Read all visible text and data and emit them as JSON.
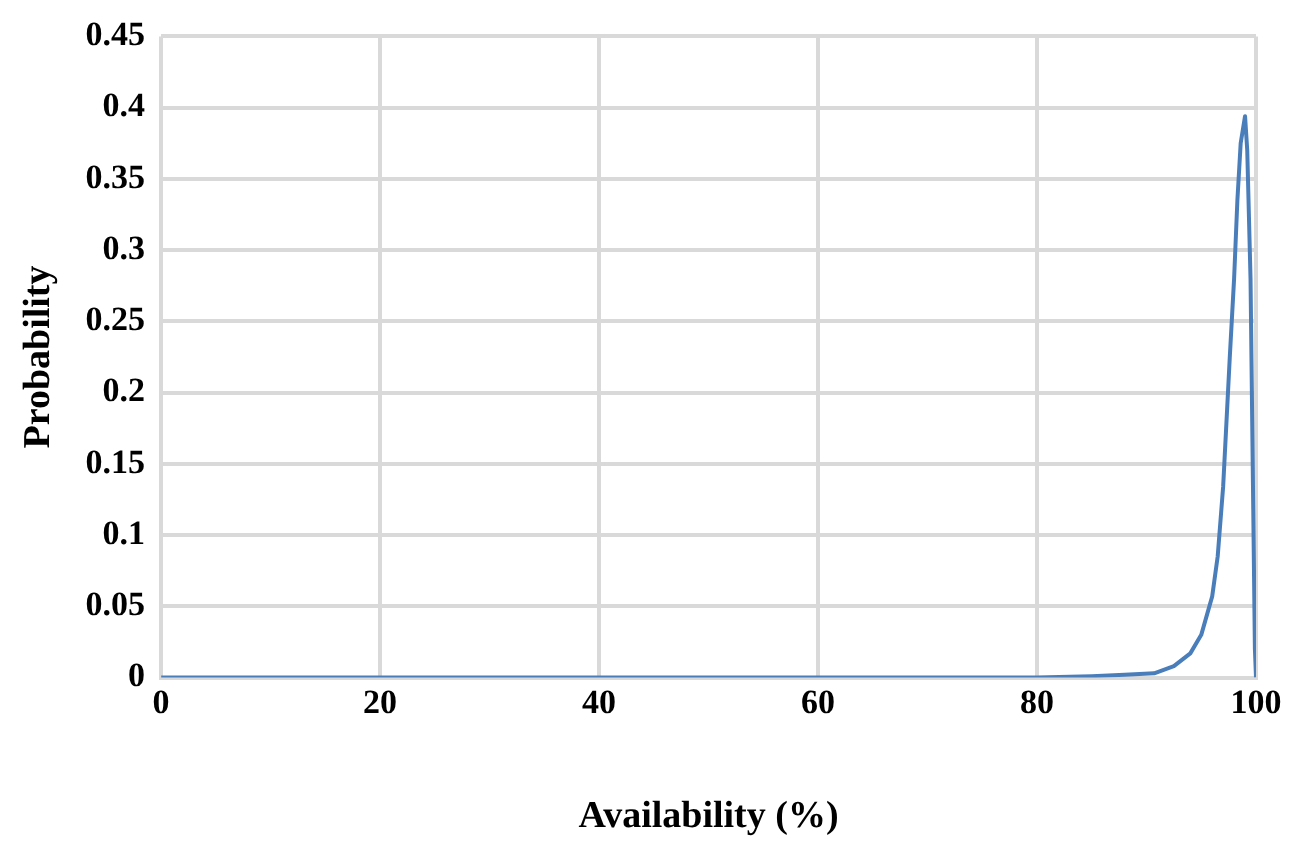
{
  "chart_data": {
    "type": "line",
    "xlabel": "Availability (%)",
    "ylabel": "Probability",
    "series": [
      {
        "color": "#4a7ebb",
        "x": [
          0,
          20,
          40,
          60,
          80,
          85,
          88,
          90.7,
          92.5,
          94,
          95,
          96,
          96.5,
          97,
          97.6,
          98,
          98.3,
          98.6,
          99,
          99.2,
          99.5,
          99.7,
          99.9,
          100
        ],
        "values": [
          0,
          0,
          0,
          0,
          0,
          0.001,
          0.002,
          0.003,
          0.008,
          0.017,
          0.03,
          0.057,
          0.085,
          0.134,
          0.224,
          0.28,
          0.335,
          0.375,
          0.394,
          0.37,
          0.28,
          0.15,
          0.02,
          0
        ]
      }
    ],
    "xlim": [
      0,
      100
    ],
    "xticks": [
      0,
      20,
      40,
      60,
      80,
      100
    ],
    "ylim": [
      0,
      0.45
    ],
    "yticks": [
      0,
      0.05,
      0.1,
      0.15,
      0.2,
      0.25,
      0.3,
      0.35,
      0.4,
      0.45
    ],
    "grid": true,
    "marker": "none",
    "line_style": "solid"
  }
}
